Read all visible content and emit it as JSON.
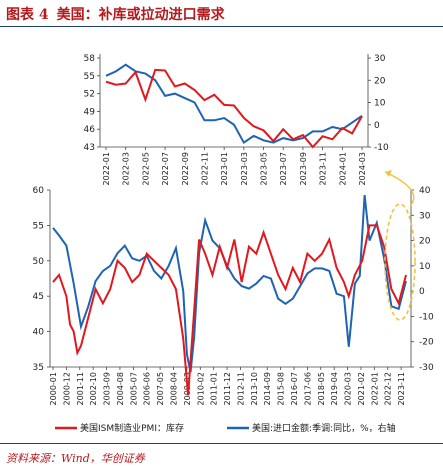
{
  "header": {
    "figure_number": "图表 4",
    "title": "美国：补库或拉动进口需求"
  },
  "source_note": "资料来源：Wind，华创证券",
  "colors": {
    "pmi": "#e0191f",
    "imports": "#1f63b3",
    "highlight_ellipse": "#f0c23a",
    "title": "#b4191c"
  },
  "chart_data": [
    {
      "type": "line",
      "title": "",
      "x": [
        "2022-01",
        "2022-02",
        "2022-03",
        "2022-04",
        "2022-05",
        "2022-06",
        "2022-07",
        "2022-08",
        "2022-09",
        "2022-10",
        "2022-11",
        "2022-12",
        "2023-01",
        "2023-02",
        "2023-03",
        "2023-04",
        "2023-05",
        "2023-06",
        "2023-07",
        "2023-08",
        "2023-09",
        "2023-10",
        "2023-11",
        "2023-12",
        "2024-01",
        "2024-02",
        "2024-03"
      ],
      "x_tick_labels": [
        "2022-01",
        "2022-03",
        "2022-05",
        "2022-07",
        "2022-09",
        "2022-11",
        "2023-01",
        "2023-03",
        "2023-05",
        "2023-07",
        "2023-09",
        "2023-11",
        "2024-01",
        "2024-03"
      ],
      "y_left": {
        "ylim": [
          43,
          58
        ],
        "ticks": [
          43,
          46,
          49,
          52,
          55,
          58
        ]
      },
      "y_right": {
        "ylim": [
          -10,
          30
        ],
        "ticks": [
          -10,
          0,
          10,
          20,
          30
        ]
      },
      "series": [
        {
          "name": "美国ISM制造业PMI：库存",
          "axis": "left",
          "values": [
            54.0,
            53.5,
            53.7,
            55.6,
            51.0,
            56.0,
            55.9,
            53.2,
            53.7,
            52.6,
            50.9,
            51.8,
            50.1,
            50.0,
            47.9,
            46.5,
            45.8,
            44.0,
            46.0,
            44.3,
            45.0,
            43.0,
            44.8,
            44.3,
            46.2,
            45.3,
            48.2
          ]
        },
        {
          "name": "美国:进口金额:季调:同比",
          "axis": "right",
          "values": [
            22,
            24,
            27,
            24,
            23,
            20,
            13,
            14,
            12,
            10,
            2,
            2,
            3,
            0,
            -8,
            -5,
            -7,
            -8,
            -6,
            -7,
            -6,
            -3,
            -3,
            -1,
            -2,
            1,
            4
          ]
        }
      ]
    },
    {
      "type": "line",
      "title": "",
      "x_start": "2000-01",
      "x_end": "2024-03",
      "x_tick_labels": [
        "2000-01",
        "2000-12",
        "2001-11",
        "2002-10",
        "2003-09",
        "2004-08",
        "2005-07",
        "2006-06",
        "2007-05",
        "2008-04",
        "2009-03",
        "2010-02",
        "2011-01",
        "2011-12",
        "2012-11",
        "2013-10",
        "2014-09",
        "2015-08",
        "2016-07",
        "2017-06",
        "2018-05",
        "2019-04",
        "2020-03",
        "2021-02",
        "2022-01",
        "2022-12",
        "2023-11"
      ],
      "y_left": {
        "ylim": [
          35,
          60
        ],
        "ticks": [
          35,
          40,
          45,
          50,
          55,
          60
        ]
      },
      "y_right": {
        "ylim": [
          -30,
          40
        ],
        "ticks": [
          -30,
          -20,
          -10,
          0,
          10,
          20,
          30,
          40
        ]
      },
      "series": [
        {
          "name": "美国ISM制造业PMI：库存",
          "axis": "left",
          "dates": [
            "2000-01",
            "2000-06",
            "2000-12",
            "2001-03",
            "2001-06",
            "2001-09",
            "2001-12",
            "2002-06",
            "2002-12",
            "2003-06",
            "2003-12",
            "2004-06",
            "2004-12",
            "2005-06",
            "2005-12",
            "2006-06",
            "2006-12",
            "2007-06",
            "2007-12",
            "2008-06",
            "2008-12",
            "2009-04",
            "2009-09",
            "2010-01",
            "2010-06",
            "2010-12",
            "2011-06",
            "2011-12",
            "2012-06",
            "2012-12",
            "2013-06",
            "2013-12",
            "2014-06",
            "2014-12",
            "2015-06",
            "2015-12",
            "2016-06",
            "2016-12",
            "2017-06",
            "2017-12",
            "2018-06",
            "2018-12",
            "2019-06",
            "2019-12",
            "2020-04",
            "2020-09",
            "2021-03",
            "2021-09",
            "2022-03",
            "2022-09",
            "2023-03",
            "2023-09",
            "2024-03"
          ],
          "values": [
            47,
            48,
            45,
            41,
            40,
            37,
            38,
            42,
            46,
            44,
            46,
            50,
            49,
            47,
            48,
            51,
            50,
            49,
            48,
            46,
            39,
            31,
            43,
            53,
            51,
            48,
            52,
            49,
            53,
            47,
            52,
            51,
            54,
            51,
            48,
            46,
            49,
            47,
            51,
            50,
            51,
            53,
            49,
            47,
            45,
            48,
            50,
            55,
            55,
            52,
            46,
            44,
            48
          ]
        },
        {
          "name": "美国:进口金额:季调:同比",
          "axis": "right",
          "dates": [
            "2000-01",
            "2000-06",
            "2000-12",
            "2001-06",
            "2001-12",
            "2002-06",
            "2002-12",
            "2003-06",
            "2003-12",
            "2004-06",
            "2004-12",
            "2005-06",
            "2005-12",
            "2006-06",
            "2006-12",
            "2007-06",
            "2007-12",
            "2008-06",
            "2008-12",
            "2009-03",
            "2009-06",
            "2009-09",
            "2010-01",
            "2010-06",
            "2010-12",
            "2011-06",
            "2011-12",
            "2012-06",
            "2012-12",
            "2013-06",
            "2013-12",
            "2014-06",
            "2014-12",
            "2015-06",
            "2015-12",
            "2016-06",
            "2016-12",
            "2017-06",
            "2017-12",
            "2018-06",
            "2018-12",
            "2019-06",
            "2019-12",
            "2020-04",
            "2020-09",
            "2021-01",
            "2021-05",
            "2021-09",
            "2022-03",
            "2022-09",
            "2023-03",
            "2023-09",
            "2024-03"
          ],
          "values": [
            25,
            22,
            18,
            3,
            -14,
            -6,
            4,
            8,
            10,
            15,
            18,
            13,
            12,
            14,
            8,
            5,
            10,
            17,
            0,
            -25,
            -32,
            -18,
            15,
            28,
            20,
            17,
            10,
            5,
            2,
            1,
            3,
            6,
            5,
            -3,
            -5,
            -3,
            2,
            7,
            9,
            9,
            8,
            -1,
            -2,
            -22,
            3,
            6,
            38,
            20,
            27,
            13,
            -6,
            -7,
            4
          ]
        }
      ],
      "annotation": "dashed ellipse highlighting the 2022-12 to 2024-03 period, with an arrow pointing to the inset chart above"
    }
  ],
  "legend": [
    {
      "label": "美国ISM制造业PMI：库存",
      "color_key": "pmi"
    },
    {
      "label": "美国:进口金额:季调:同比，%，右轴",
      "color_key": "imports"
    }
  ]
}
